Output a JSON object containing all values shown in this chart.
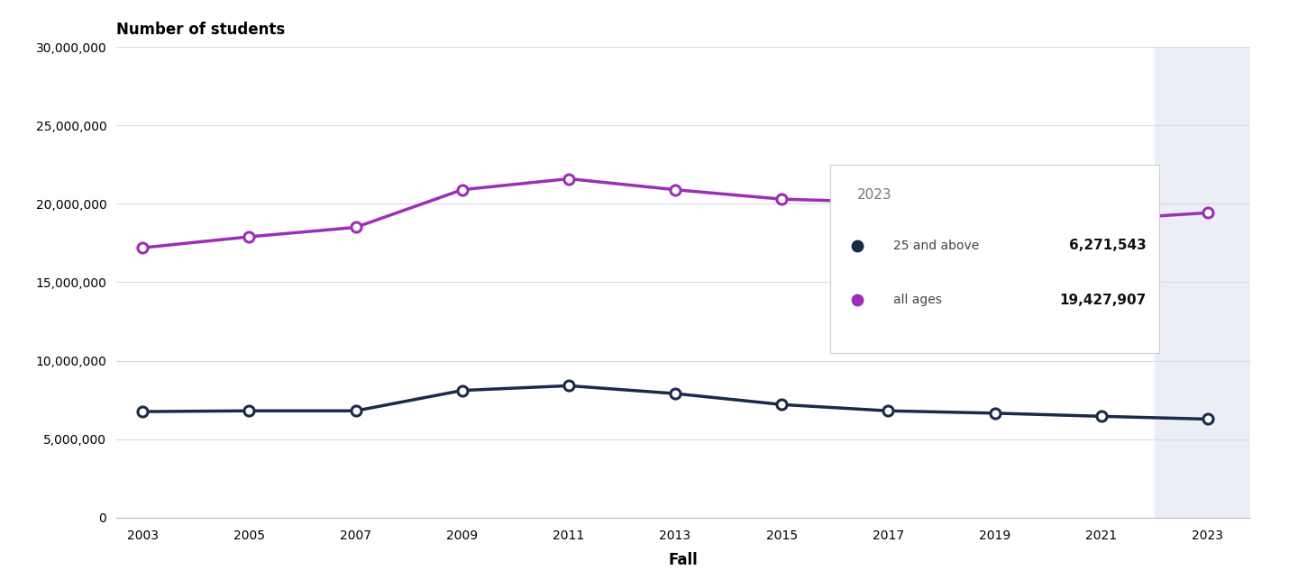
{
  "years": [
    2003,
    2005,
    2007,
    2009,
    2011,
    2013,
    2015,
    2017,
    2019,
    2021,
    2023
  ],
  "all_ages": [
    17200000,
    17900000,
    18500000,
    20900000,
    21600000,
    20900000,
    20300000,
    20100000,
    19900000,
    19000000,
    19427907
  ],
  "ages_25plus": [
    6750000,
    6800000,
    6800000,
    8100000,
    8400000,
    7900000,
    7200000,
    6800000,
    6650000,
    6450000,
    6271543
  ],
  "all_ages_color": "#9B2FB5",
  "ages_25plus_color": "#1B2A4A",
  "shaded_start": 2022,
  "shaded_color": "#ECEEF5",
  "background_color": "#FFFFFF",
  "plot_bg_color": "#FFFFFF",
  "title": "Number of students",
  "xlabel": "Fall",
  "ylabel": "",
  "ylim": [
    0,
    30000000
  ],
  "yticks": [
    0,
    5000000,
    10000000,
    15000000,
    20000000,
    25000000,
    30000000
  ],
  "legend_year": "2023",
  "legend_label_25plus": "25 and above",
  "legend_label_all": "all ages",
  "legend_value_25plus": "6,271,543",
  "legend_value_all": "19,427,907",
  "line_width": 2.5,
  "marker_size": 8,
  "xlim_left": 2002.5,
  "xlim_right": 2023.8
}
